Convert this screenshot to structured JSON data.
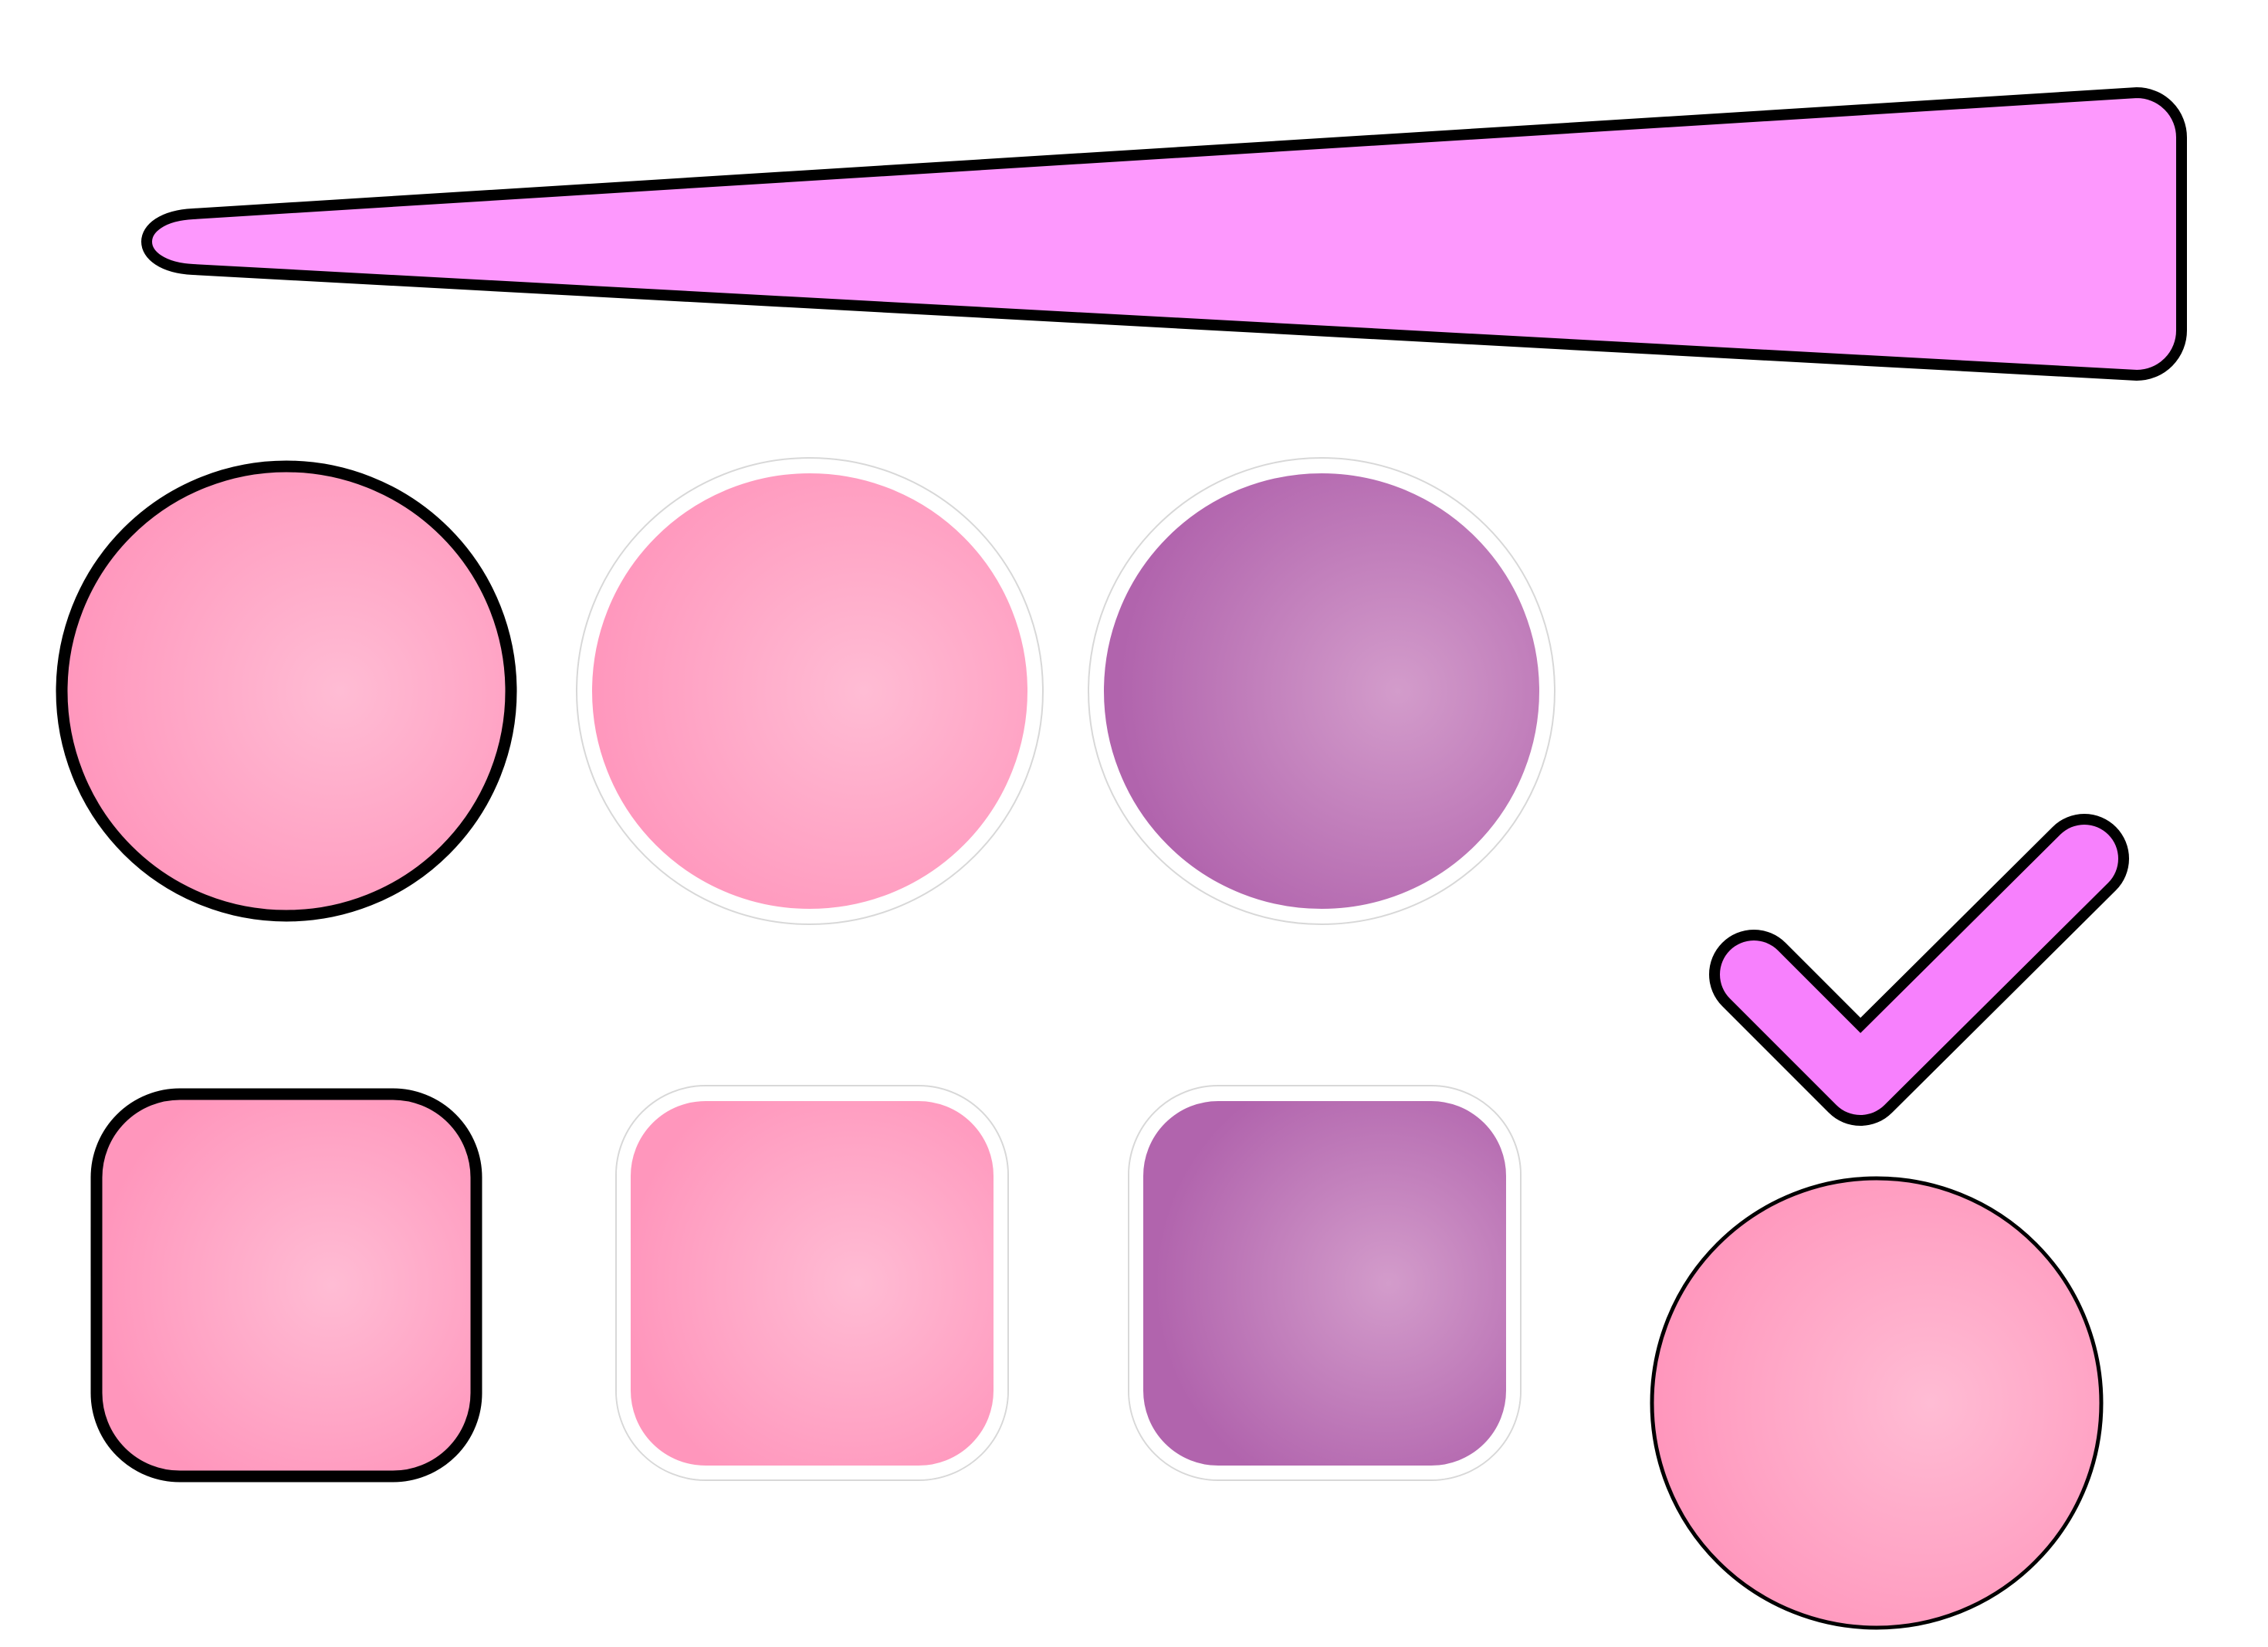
{
  "colors": {
    "background": "#ffffff",
    "stroke": "#000000",
    "halo": "#ffffff",
    "wedge_fill": "#fd98fd",
    "check_fill": "#f780fd",
    "pink_highlight": "#ffbcd4",
    "pink_base": "#ff96bc",
    "purple_highlight": "#d39ccb",
    "purple_base": "#b164ad"
  },
  "shapes": {
    "wedge": {
      "icon": "tapered-wedge-icon",
      "fill": "wedge_fill",
      "border": "black"
    },
    "check": {
      "icon": "checkmark-icon",
      "fill": "check_fill",
      "border": "black"
    },
    "circles": [
      {
        "icon": "pink-circle-button-icon",
        "palette": "pink",
        "border": "black"
      },
      {
        "icon": "pink-circle-button-icon",
        "palette": "pink",
        "border": "white"
      },
      {
        "icon": "purple-circle-button-icon",
        "palette": "purple",
        "border": "white"
      },
      {
        "icon": "pink-circle-button-icon",
        "palette": "pink",
        "border": "thin-black"
      }
    ],
    "squares": [
      {
        "icon": "pink-rounded-square-button-icon",
        "palette": "pink",
        "border": "black"
      },
      {
        "icon": "pink-rounded-square-button-icon",
        "palette": "pink",
        "border": "white"
      },
      {
        "icon": "purple-rounded-square-button-icon",
        "palette": "purple",
        "border": "white"
      }
    ]
  }
}
